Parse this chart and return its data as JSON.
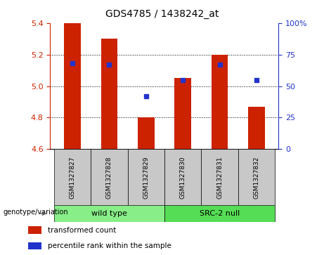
{
  "title": "GDS4785 / 1438242_at",
  "samples": [
    "GSM1327827",
    "GSM1327828",
    "GSM1327829",
    "GSM1327830",
    "GSM1327831",
    "GSM1327832"
  ],
  "bar_values": [
    5.4,
    5.3,
    4.8,
    5.05,
    5.2,
    4.87
  ],
  "bar_bottom": 4.6,
  "percentile_pct": [
    68,
    67,
    42,
    55,
    67,
    55
  ],
  "bar_color": "#cc2200",
  "percentile_color": "#2233cc",
  "ylim_left": [
    4.6,
    5.4
  ],
  "ylim_right": [
    0,
    100
  ],
  "yticks_left": [
    4.6,
    4.8,
    5.0,
    5.2,
    5.4
  ],
  "yticks_right": [
    0,
    25,
    50,
    75,
    100
  ],
  "ytick_labels_right": [
    "0",
    "25",
    "50",
    "75",
    "100%"
  ],
  "groups": [
    {
      "label": "wild type",
      "start": 0,
      "end": 2,
      "color": "#88ee88"
    },
    {
      "label": "SRC-2 null",
      "start": 3,
      "end": 5,
      "color": "#55dd55"
    }
  ],
  "genotype_label": "genotype/variation",
  "legend_items": [
    {
      "label": "transformed count",
      "color": "#cc2200"
    },
    {
      "label": "percentile rank within the sample",
      "color": "#2233cc"
    }
  ],
  "bg_color": "#c8c8c8",
  "plot_bg": "#ffffff",
  "tick_color_left": "#cc2200",
  "tick_color_right": "#2233cc",
  "bar_width": 0.45
}
